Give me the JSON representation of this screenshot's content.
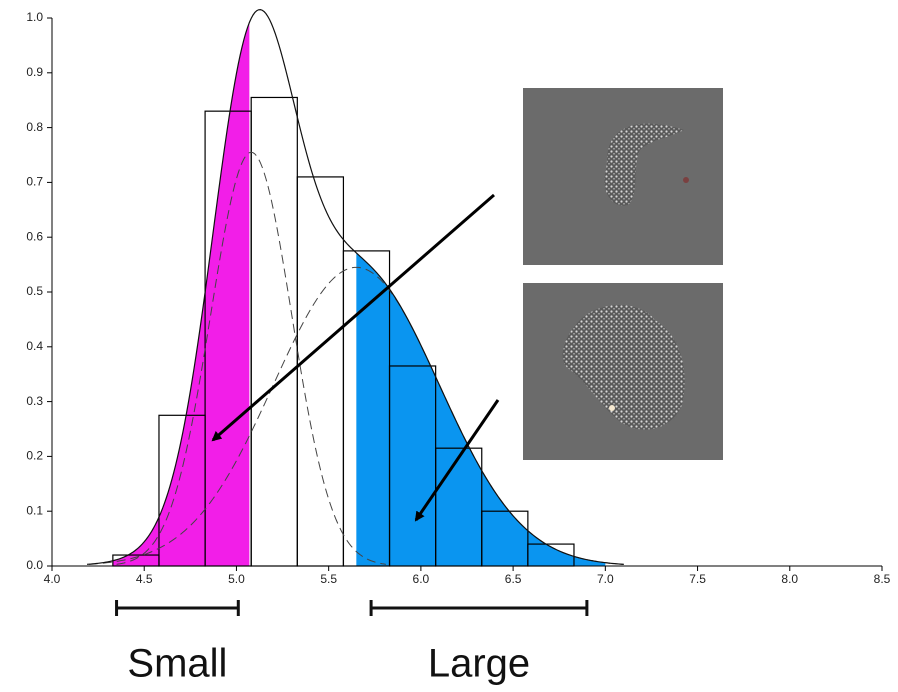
{
  "chart_data": {
    "type": "histogram",
    "bins": [
      4.33,
      4.58,
      4.83,
      5.08,
      5.33,
      5.58,
      5.83,
      6.08,
      6.33,
      6.58,
      6.83
    ],
    "values": [
      0.02,
      0.275,
      0.83,
      0.855,
      0.71,
      0.575,
      0.365,
      0.215,
      0.1,
      0.04
    ],
    "components": [
      {
        "mean": 5.08,
        "sd": 0.22,
        "peak": 0.755
      },
      {
        "mean": 5.65,
        "sd": 0.45,
        "peak": 0.545
      }
    ],
    "shaded": [
      {
        "from": 4.33,
        "to": 5.07,
        "color": "#f21ee8"
      },
      {
        "from": 5.65,
        "to": 7.0,
        "color": "#0a95f0"
      }
    ],
    "ranges": [
      {
        "label": "Small",
        "from": 4.35,
        "to": 5.01
      },
      {
        "label": "Large",
        "from": 5.73,
        "to": 6.9
      }
    ],
    "xlim": [
      4.0,
      8.5
    ],
    "ylim": [
      0,
      1.0
    ],
    "xticks": [
      {
        "value": 4.0,
        "label": "4.0"
      },
      4.5,
      {
        "value": 5.0,
        "label": "5.0"
      },
      5.5,
      {
        "value": 6.0,
        "label": "6.0"
      },
      6.5,
      {
        "value": 7.0,
        "label": "7.0"
      },
      7.5,
      {
        "value": 8.0,
        "label": "8.0"
      },
      8.5
    ],
    "yticks": [
      {
        "value": 0,
        "label": "0.0"
      },
      0.1,
      0.2,
      0.3,
      0.4,
      0.5,
      0.6,
      0.7,
      0.8,
      0.9,
      {
        "value": 1.0,
        "label": "1.0"
      }
    ]
  }
}
